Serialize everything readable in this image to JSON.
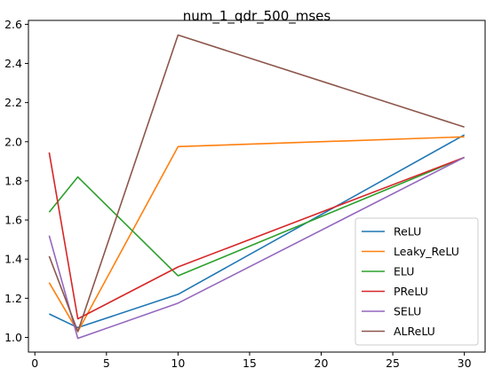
{
  "chart_data": {
    "type": "line",
    "title": "num_1_qdr_500_mses",
    "xlabel": "",
    "ylabel": "",
    "xlim": [
      -0.45,
      31.45
    ],
    "ylim": [
      0.925,
      2.62
    ],
    "xticks": [
      0,
      5,
      10,
      15,
      20,
      25,
      30
    ],
    "yticks": [
      1.0,
      1.2,
      1.4,
      1.6,
      1.8,
      2.0,
      2.2,
      2.4,
      2.6
    ],
    "x": [
      1,
      3,
      10,
      30
    ],
    "legend_position": "lower-right",
    "grid": false,
    "series": [
      {
        "name": "ReLU",
        "color": "#1f77b4",
        "values": [
          1.12,
          1.05,
          1.22,
          2.035
        ]
      },
      {
        "name": "Leaky_ReLU",
        "color": "#ff7f0e",
        "values": [
          1.28,
          1.03,
          1.975,
          2.025
        ]
      },
      {
        "name": "ELU",
        "color": "#2ca02c",
        "values": [
          1.64,
          1.82,
          1.315,
          1.92
        ]
      },
      {
        "name": "PReLU",
        "color": "#d62728",
        "values": [
          1.945,
          1.095,
          1.36,
          1.92
        ]
      },
      {
        "name": "SELU",
        "color": "#9467bd",
        "values": [
          1.52,
          0.995,
          1.175,
          1.92
        ]
      },
      {
        "name": "ALReLU",
        "color": "#8c564b",
        "values": [
          1.415,
          1.03,
          2.545,
          2.075
        ]
      }
    ]
  }
}
